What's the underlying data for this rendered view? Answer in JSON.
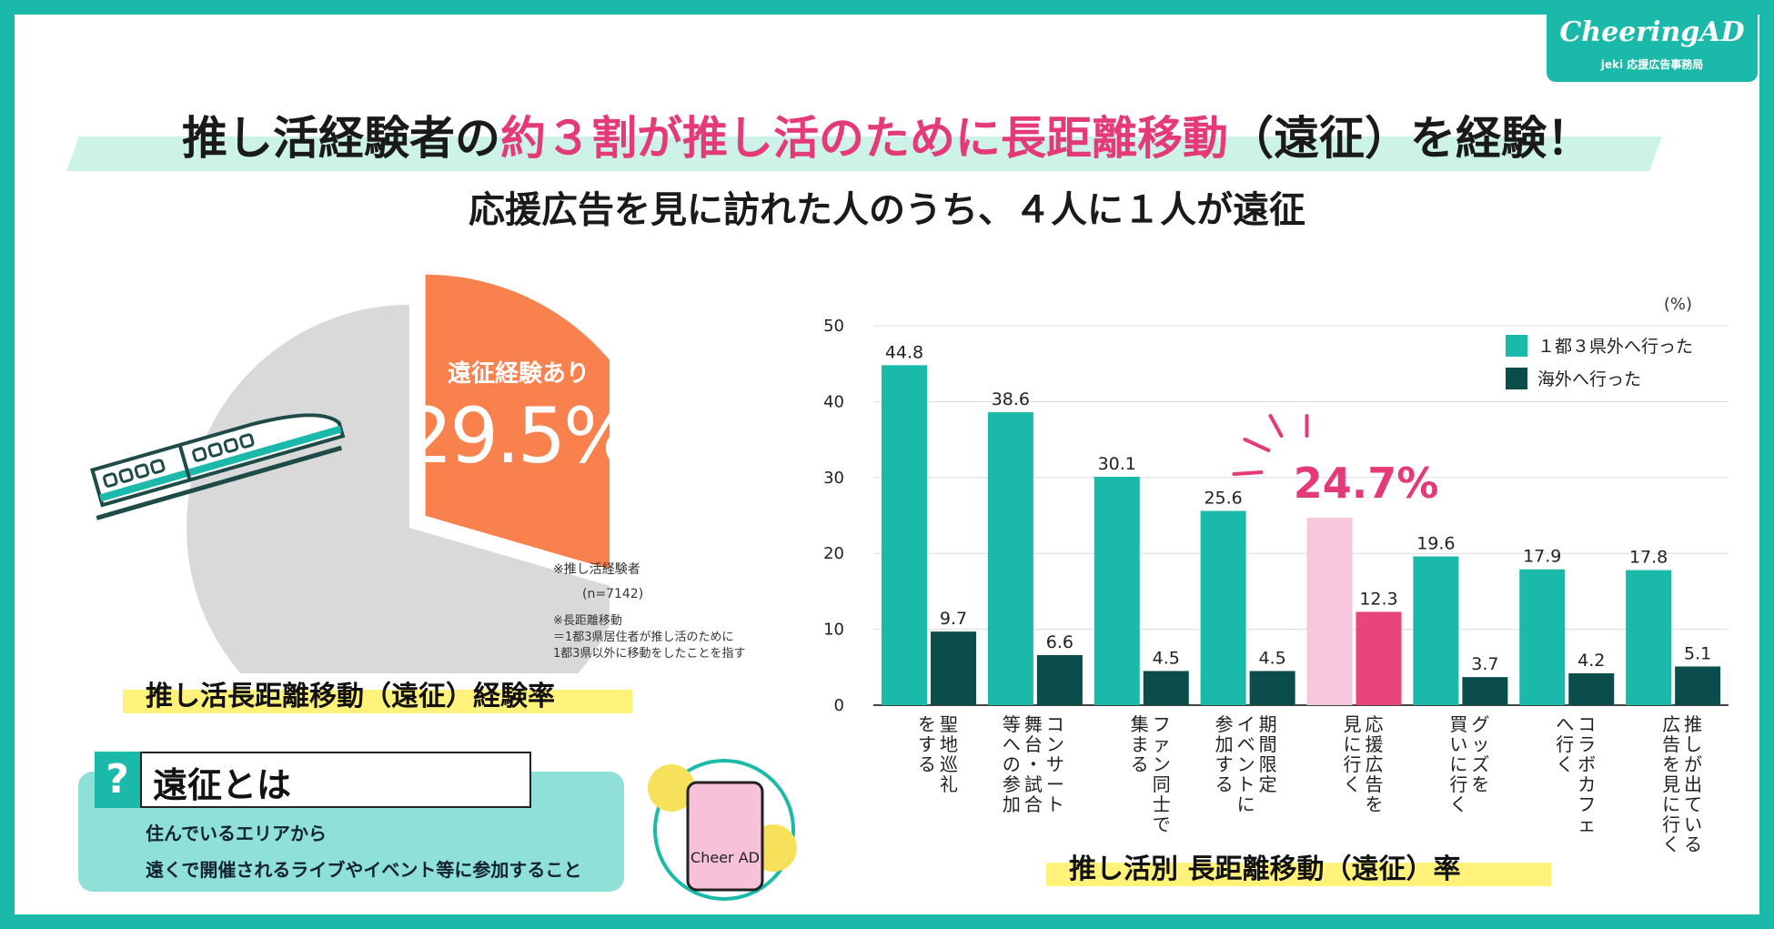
{
  "logo": {
    "main": "CheeringAD",
    "sub": "jeki 応援広告事務局"
  },
  "header": {
    "title_pre": "推し活経験者の",
    "title_highlight": "約３割が推し活のために長距離移動",
    "title_post": "（遠征）を経験！",
    "subtitle": "応援広告を見に訪れた人のうち、４人に１人が遠征"
  },
  "pie": {
    "label": "遠征経験あり",
    "value_text": "29.5%",
    "caption": "推し活長距離移動（遠征）経験率",
    "note1": "※推し活経験者",
    "note2": "(n=7142)",
    "note3": "※長距離移動",
    "note4": "＝1都3県居住者が推し活のために",
    "note5": "1都3県以外に移動をしたことを指す",
    "colors": {
      "slice": "#f8814d",
      "rest": "#d9d9d9"
    }
  },
  "definition": {
    "icon": "?",
    "title": "遠征とは",
    "line1": "住んでいるエリアから",
    "line2": "遠くで開催されるライブやイベント等に参加すること",
    "mascot": "Cheer AD"
  },
  "chart_data": [
    {
      "type": "pie",
      "slices": [
        {
          "name": "遠征経験あり",
          "value": 29.5
        },
        {
          "name": "",
          "value": 70.5
        }
      ]
    },
    {
      "type": "bar",
      "title": "推し活別 長距離移動（遠征）率",
      "unit": "(%)",
      "ylim": [
        0,
        50
      ],
      "yticks": [
        0,
        10,
        20,
        30,
        40,
        50
      ],
      "grid": true,
      "legend_position": "top-right",
      "categories": [
        [
          "聖",
          "地",
          "巡",
          "礼"
        ],
        [
          "コ",
          "ン",
          "サ",
          "ー",
          "ト",
          "舞",
          "台",
          "・",
          "試",
          "合"
        ],
        [
          "フ",
          "ァ",
          "ン",
          "同",
          "士",
          "で"
        ],
        [
          "期",
          "間",
          "限",
          "定",
          "イ",
          "ベ",
          "ン",
          "ト",
          "に"
        ],
        [
          "応",
          "援",
          "広",
          "告",
          "を"
        ],
        [
          "グ",
          "ッ",
          "ズ",
          "を"
        ],
        [
          "コ",
          "ラ",
          "ボ",
          "カ",
          "フ",
          "ェ"
        ],
        [
          "推",
          "し",
          "が",
          "出",
          "て",
          "い",
          "る"
        ]
      ],
      "category_lines": [
        [
          "聖地巡礼",
          "をする"
        ],
        [
          "コンサート",
          "舞台・試合",
          "等への参加"
        ],
        [
          "ファン同士で",
          "集まる"
        ],
        [
          "期間限定",
          "イベントに",
          "参加する"
        ],
        [
          "応援広告を",
          "見に行く"
        ],
        [
          "グッズを",
          "買いに行く"
        ],
        [
          "コラボカフェ",
          "へ行く"
        ],
        [
          "推しが出ている",
          "広告を見に行く"
        ]
      ],
      "series": [
        {
          "name": "１都３県外へ行った",
          "color": "#1bb9a9",
          "values": [
            44.8,
            38.6,
            30.1,
            25.6,
            24.7,
            19.6,
            17.9,
            17.8
          ]
        },
        {
          "name": "海外へ行った",
          "color": "#0b4d4a",
          "values": [
            9.7,
            6.6,
            4.5,
            4.5,
            12.3,
            3.7,
            4.2,
            5.1
          ]
        }
      ],
      "highlight": {
        "index": 4,
        "label": "24.7%",
        "colors": [
          "#f5c6dc",
          "#e8457a"
        ]
      }
    }
  ]
}
